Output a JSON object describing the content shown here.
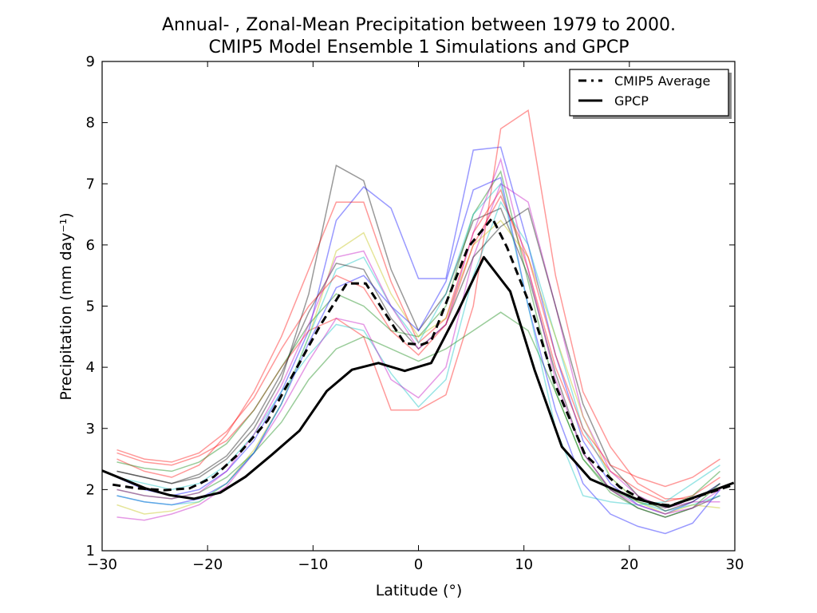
{
  "chart_data": {
    "type": "line",
    "title": [
      "Annual- , Zonal-Mean Precipitation between 1979 to 2000.",
      "CMIP5 Model Ensemble 1 Simulations and GPCP"
    ],
    "xlabel": "Latitude (°)",
    "ylabel": "Precipitation (mm day⁻¹)",
    "xlim": [
      -30,
      30
    ],
    "ylim": [
      1,
      9
    ],
    "xticks": [
      -30,
      -20,
      -10,
      0,
      10,
      20,
      30
    ],
    "xtick_labels": [
      "−30",
      "−20",
      "−10",
      "0",
      "10",
      "20",
      "30"
    ],
    "yticks": [
      1,
      2,
      3,
      4,
      5,
      6,
      7,
      8,
      9
    ],
    "ytick_labels": [
      "1",
      "2",
      "3",
      "4",
      "5",
      "6",
      "7",
      "8",
      "9"
    ],
    "grid": false,
    "legend": {
      "placement": "top-right",
      "entries": [
        "CMIP5 Average",
        "GPCP"
      ]
    },
    "series": [
      {
        "name": "CMIP5 Average",
        "color": "#000000",
        "style": "dashed",
        "x": [
          -29,
          -26.7,
          -24.1,
          -21.7,
          -19.4,
          -16.9,
          -14.3,
          -11.8,
          -9.3,
          -6.8,
          -5.0,
          -1.3,
          0.3,
          1.2,
          4.7,
          7.0,
          8.4,
          10.8,
          13.0,
          15.8,
          19.1,
          21.8,
          23.9,
          29.9
        ],
        "y": [
          2.08,
          2.02,
          1.99,
          2.02,
          2.21,
          2.61,
          3.13,
          3.91,
          4.69,
          5.37,
          5.37,
          4.39,
          4.37,
          4.43,
          5.96,
          6.44,
          5.96,
          4.92,
          3.7,
          2.57,
          2.04,
          1.78,
          1.74,
          2.08
        ]
      },
      {
        "name": "GPCP",
        "color": "#000000",
        "style": "solid",
        "x": [
          -30,
          -25.9,
          -23.6,
          -21.3,
          -18.8,
          -16.4,
          -13.9,
          -11.3,
          -8.7,
          -6.3,
          -3.8,
          -1.3,
          1.2,
          3.7,
          6.2,
          8.7,
          11.0,
          13.6,
          16.3,
          20.6,
          23.7,
          27.4,
          29.9
        ],
        "y": [
          2.31,
          2.02,
          1.91,
          1.85,
          1.95,
          2.21,
          2.57,
          2.96,
          3.61,
          3.96,
          4.07,
          3.94,
          4.07,
          4.9,
          5.8,
          5.24,
          3.96,
          2.7,
          2.17,
          1.85,
          1.72,
          1.95,
          2.11
        ]
      }
    ],
    "ensemble_members": {
      "x": [
        -28.6,
        -26,
        -23.4,
        -20.8,
        -18.2,
        -15.6,
        -13,
        -10.4,
        -7.8,
        -5.2,
        -2.6,
        0,
        2.6,
        5.2,
        7.8,
        10.4,
        13,
        15.6,
        18.2,
        20.8,
        23.4,
        26,
        28.6
      ],
      "alpha": 0.4,
      "members": [
        {
          "color": "#000000",
          "y": [
            2.3,
            2.2,
            2.1,
            2.2,
            2.5,
            3.0,
            3.8,
            5.2,
            7.3,
            7.05,
            5.6,
            4.6,
            5.2,
            6.4,
            6.6,
            5.5,
            3.9,
            2.6,
            2.0,
            1.7,
            1.55,
            1.7,
            1.9
          ]
        },
        {
          "color": "#0000ff",
          "y": [
            2.2,
            2.0,
            1.9,
            2.0,
            2.3,
            2.8,
            3.6,
            4.6,
            6.4,
            6.95,
            6.6,
            5.45,
            5.45,
            7.55,
            7.6,
            6.0,
            4.2,
            2.8,
            2.1,
            1.75,
            1.6,
            1.8,
            2.1
          ]
        },
        {
          "color": "#ff0000",
          "y": [
            2.6,
            2.45,
            2.4,
            2.55,
            2.8,
            3.3,
            4.0,
            4.6,
            4.8,
            4.5,
            3.3,
            3.3,
            3.55,
            5.0,
            7.9,
            8.2,
            5.5,
            3.6,
            2.7,
            2.1,
            1.85,
            1.85,
            2.0
          ]
        },
        {
          "color": "#ff0000",
          "y": [
            2.5,
            2.3,
            2.2,
            2.4,
            2.9,
            3.6,
            4.5,
            5.6,
            6.7,
            6.7,
            5.4,
            4.4,
            4.8,
            6.2,
            6.9,
            5.6,
            4.0,
            2.9,
            2.3,
            2.0,
            1.8,
            1.9,
            2.2
          ]
        },
        {
          "color": "#008000",
          "y": [
            2.45,
            2.35,
            2.3,
            2.45,
            2.75,
            3.3,
            4.0,
            4.7,
            5.2,
            5.0,
            4.6,
            4.5,
            5.0,
            6.5,
            7.2,
            5.4,
            3.6,
            2.5,
            2.0,
            1.8,
            1.7,
            1.9,
            2.3
          ]
        },
        {
          "color": "#00bfbf",
          "y": [
            2.2,
            2.1,
            2.0,
            2.1,
            2.4,
            2.9,
            3.6,
            4.2,
            4.7,
            4.6,
            3.9,
            3.35,
            3.8,
            5.5,
            6.7,
            6.0,
            4.5,
            3.0,
            2.2,
            1.8,
            1.65,
            1.75,
            1.9
          ]
        },
        {
          "color": "#bf00bf",
          "y": [
            1.55,
            1.5,
            1.6,
            1.75,
            2.05,
            2.6,
            3.3,
            4.1,
            4.8,
            4.7,
            3.8,
            3.5,
            4.0,
            5.8,
            7.0,
            6.7,
            5.0,
            3.2,
            2.3,
            1.9,
            1.7,
            1.8,
            1.8
          ]
        },
        {
          "color": "#bfbf00",
          "y": [
            1.75,
            1.6,
            1.65,
            1.8,
            2.1,
            2.65,
            3.4,
            4.5,
            5.9,
            6.2,
            5.2,
            4.5,
            4.8,
            6.0,
            6.4,
            5.8,
            4.5,
            3.2,
            2.2,
            1.8,
            1.6,
            1.75,
            1.7
          ]
        },
        {
          "color": "#008000",
          "y": [
            2.0,
            1.9,
            1.85,
            1.95,
            2.2,
            2.6,
            3.1,
            3.8,
            4.3,
            4.5,
            4.3,
            4.1,
            4.3,
            4.6,
            4.9,
            4.6,
            3.6,
            2.5,
            1.95,
            1.7,
            1.55,
            1.7,
            2.1
          ]
        },
        {
          "color": "#0000ff",
          "y": [
            1.9,
            1.8,
            1.75,
            1.85,
            2.1,
            2.6,
            3.4,
            4.4,
            5.3,
            5.5,
            5.0,
            4.6,
            5.4,
            6.9,
            7.1,
            5.0,
            3.3,
            2.1,
            1.6,
            1.4,
            1.28,
            1.45,
            2.0
          ]
        },
        {
          "color": "#00bfbf",
          "y": [
            1.9,
            1.8,
            1.75,
            1.8,
            2.1,
            2.6,
            3.4,
            4.5,
            5.6,
            5.8,
            5.0,
            4.4,
            5.2,
            6.5,
            7.0,
            5.0,
            3.0,
            1.9,
            1.8,
            1.75,
            1.8,
            2.1,
            2.4
          ]
        },
        {
          "color": "#000000",
          "y": [
            2.3,
            2.2,
            2.1,
            2.25,
            2.55,
            3.1,
            3.9,
            4.9,
            5.7,
            5.6,
            4.8,
            4.3,
            4.7,
            5.8,
            6.3,
            6.6,
            5.0,
            3.4,
            2.4,
            1.9,
            1.65,
            1.8,
            2.1
          ]
        },
        {
          "color": "#ff0000",
          "y": [
            2.65,
            2.5,
            2.45,
            2.6,
            2.95,
            3.5,
            4.3,
            5.0,
            5.5,
            5.3,
            4.6,
            4.2,
            4.7,
            6.0,
            6.8,
            5.8,
            4.2,
            3.0,
            2.4,
            2.2,
            2.05,
            2.2,
            2.5
          ]
        },
        {
          "color": "#bf00bf",
          "y": [
            2.0,
            1.9,
            1.85,
            1.95,
            2.3,
            2.9,
            3.7,
            4.7,
            5.8,
            5.9,
            5.0,
            4.3,
            4.7,
            6.2,
            7.4,
            5.6,
            3.8,
            2.6,
            2.0,
            1.75,
            1.6,
            1.7,
            2.0
          ]
        }
      ]
    }
  }
}
